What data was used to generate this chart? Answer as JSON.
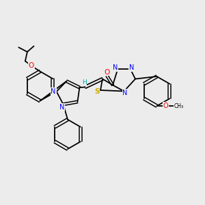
{
  "background_color": "#ececec",
  "atom_colors": {
    "N": "#0000ff",
    "O": "#ff0000",
    "S": "#ccaa00",
    "C": "#000000",
    "H": "#00aaaa"
  },
  "bond_color": "#000000"
}
